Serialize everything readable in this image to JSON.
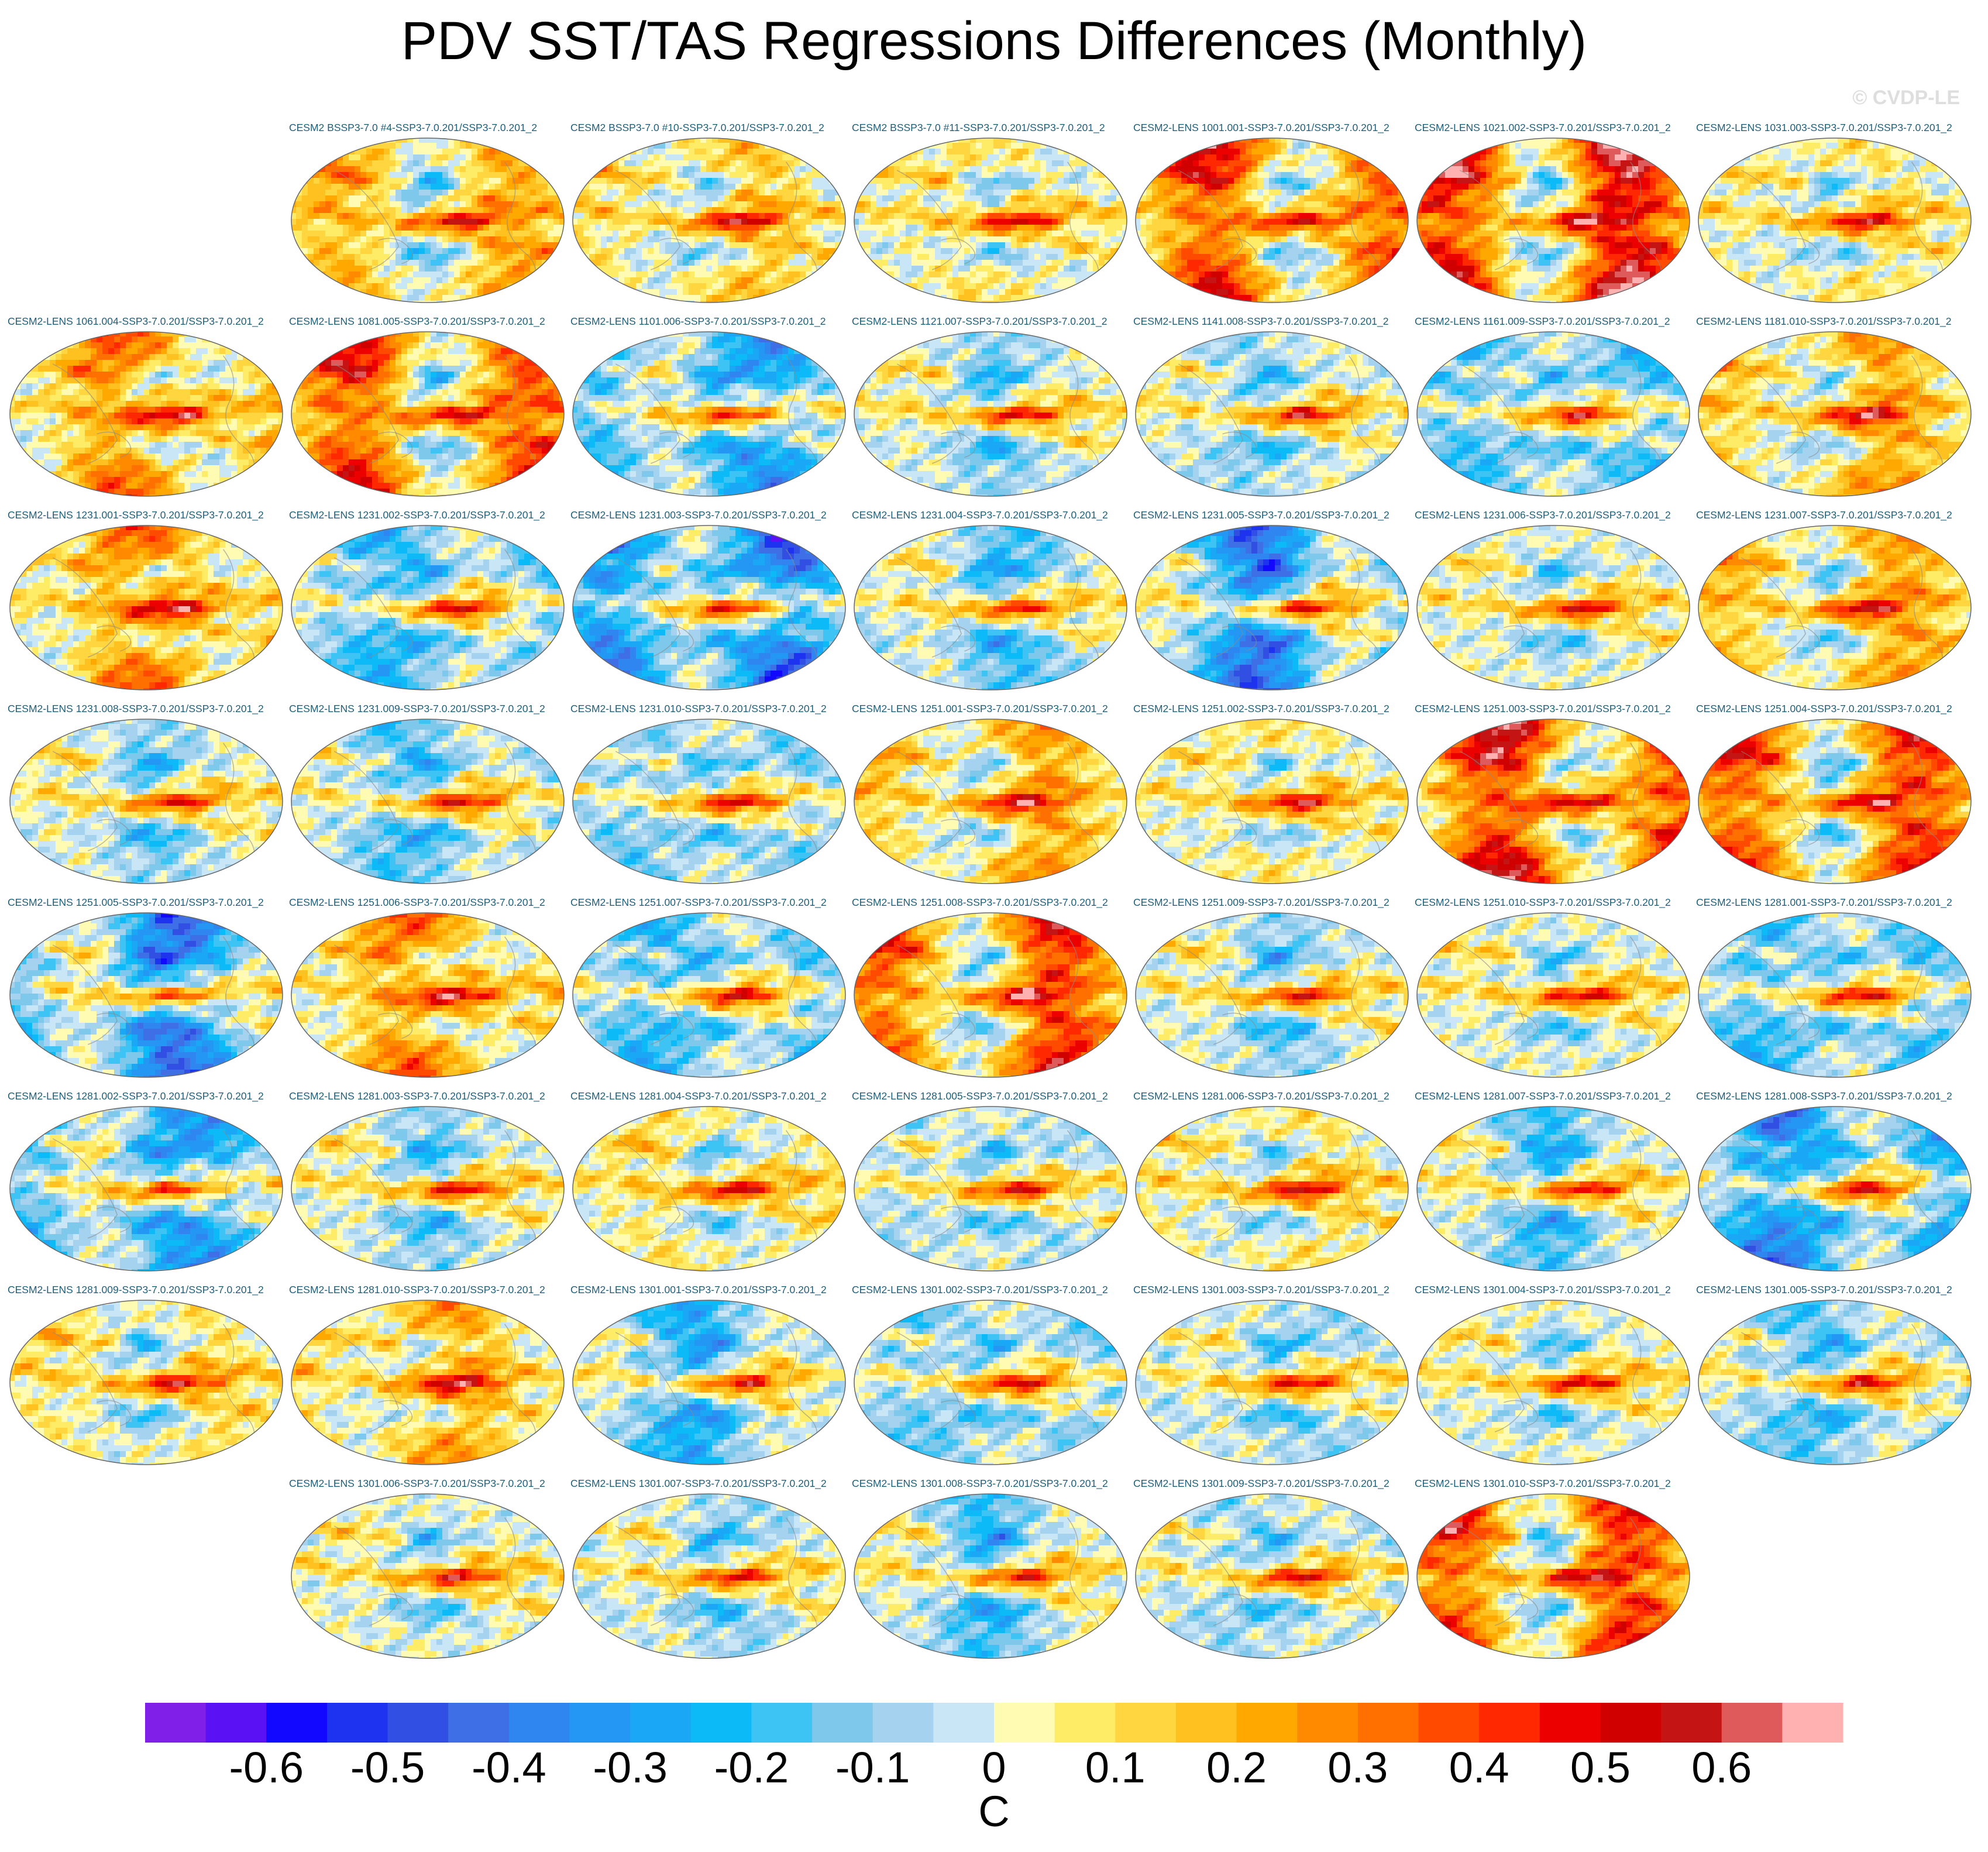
{
  "title": "PDV SST/TAS Regressions Differences (Monthly)",
  "watermark": "© CVDP-LE",
  "chart_data": {
    "type": "heatmap",
    "title": "PDV SST/TAS Regressions Differences (Monthly)",
    "projection": "robinson-like global maps",
    "units": "C",
    "colorbar": {
      "label": "C",
      "tick_labels": [
        "-0.6",
        "-0.5",
        "-0.4",
        "-0.3",
        "-0.2",
        "-0.1",
        "0",
        "0.1",
        "0.2",
        "0.3",
        "0.4",
        "0.5",
        "0.6"
      ],
      "tick_values": [
        -0.6,
        -0.5,
        -0.4,
        -0.3,
        -0.2,
        -0.1,
        0,
        0.1,
        0.2,
        0.3,
        0.4,
        0.5,
        0.6
      ],
      "range": [
        -0.7,
        0.7
      ],
      "step": 0.05,
      "colors": [
        "#7f1fe8",
        "#5a12f5",
        "#1207ff",
        "#1d33f0",
        "#3150e3",
        "#3f6fe6",
        "#2f86f0",
        "#2496f3",
        "#1aa7f6",
        "#0cbaf8",
        "#3ec3f5",
        "#7ec8ec",
        "#a5d3ef",
        "#c8e6f6",
        "#fffbb3",
        "#ffec66",
        "#ffd540",
        "#ffc11f",
        "#ffa800",
        "#ff8a00",
        "#ff7000",
        "#ff4a00",
        "#ff2800",
        "#ec0000",
        "#d00000",
        "#c41414",
        "#df5a5a",
        "#ffb0b0"
      ]
    },
    "panels": [
      {
        "label": "CESM2 BSSP3-7.0 #4-SSP3-7.0.201/SSP3-7.0.201_2",
        "bias": 0.15
      },
      {
        "label": "CESM2 BSSP3-7.0 #10-SSP3-7.0.201/SSP3-7.0.201_2",
        "bias": 0.1
      },
      {
        "label": "CESM2 BSSP3-7.0 #11-SSP3-7.0.201/SSP3-7.0.201_2",
        "bias": 0.05
      },
      {
        "label": "CESM2-LENS 1001.001-SSP3-7.0.201/SSP3-7.0.201_2",
        "bias": 0.3
      },
      {
        "label": "CESM2-LENS 1021.002-SSP3-7.0.201/SSP3-7.0.201_2",
        "bias": 0.4
      },
      {
        "label": "CESM2-LENS 1031.003-SSP3-7.0.201/SSP3-7.0.201_2",
        "bias": 0.05
      },
      {
        "label": "CESM2-LENS 1061.004-SSP3-7.0.201/SSP3-7.0.201_2",
        "bias": 0.2
      },
      {
        "label": "CESM2-LENS 1081.005-SSP3-7.0.201/SSP3-7.0.201_2",
        "bias": 0.3
      },
      {
        "label": "CESM2-LENS 1101.006-SSP3-7.0.201/SSP3-7.0.201_2",
        "bias": -0.2
      },
      {
        "label": "CESM2-LENS 1121.007-SSP3-7.0.201/SSP3-7.0.201_2",
        "bias": -0.05
      },
      {
        "label": "CESM2-LENS 1141.008-SSP3-7.0.201/SSP3-7.0.201_2",
        "bias": -0.05
      },
      {
        "label": "CESM2-LENS 1161.009-SSP3-7.0.201/SSP3-7.0.201_2",
        "bias": -0.15
      },
      {
        "label": "CESM2-LENS 1181.010-SSP3-7.0.201/SSP3-7.0.201_2",
        "bias": 0.15
      },
      {
        "label": "CESM2-LENS 1231.001-SSP3-7.0.201/SSP3-7.0.201_2",
        "bias": 0.2
      },
      {
        "label": "CESM2-LENS 1231.002-SSP3-7.0.201/SSP3-7.0.201_2",
        "bias": -0.15
      },
      {
        "label": "CESM2-LENS 1231.003-SSP3-7.0.201/SSP3-7.0.201_2",
        "bias": -0.3
      },
      {
        "label": "CESM2-LENS 1231.004-SSP3-7.0.201/SSP3-7.0.201_2",
        "bias": -0.1
      },
      {
        "label": "CESM2-LENS 1231.005-SSP3-7.0.201/SSP3-7.0.201_2",
        "bias": -0.25
      },
      {
        "label": "CESM2-LENS 1231.006-SSP3-7.0.201/SSP3-7.0.201_2",
        "bias": 0.0
      },
      {
        "label": "CESM2-LENS 1231.007-SSP3-7.0.201/SSP3-7.0.201_2",
        "bias": 0.15
      },
      {
        "label": "CESM2-LENS 1231.008-SSP3-7.0.201/SSP3-7.0.201_2",
        "bias": -0.05
      },
      {
        "label": "CESM2-LENS 1231.009-SSP3-7.0.201/SSP3-7.0.201_2",
        "bias": -0.1
      },
      {
        "label": "CESM2-LENS 1231.010-SSP3-7.0.201/SSP3-7.0.201_2",
        "bias": -0.1
      },
      {
        "label": "CESM2-LENS 1251.001-SSP3-7.0.201/SSP3-7.0.201_2",
        "bias": 0.15
      },
      {
        "label": "CESM2-LENS 1251.002-SSP3-7.0.201/SSP3-7.0.201_2",
        "bias": 0.05
      },
      {
        "label": "CESM2-LENS 1251.003-SSP3-7.0.201/SSP3-7.0.201_2",
        "bias": 0.35
      },
      {
        "label": "CESM2-LENS 1251.004-SSP3-7.0.201/SSP3-7.0.201_2",
        "bias": 0.3
      },
      {
        "label": "CESM2-LENS 1251.005-SSP3-7.0.201/SSP3-7.0.201_2",
        "bias": -0.25
      },
      {
        "label": "CESM2-LENS 1251.006-SSP3-7.0.201/SSP3-7.0.201_2",
        "bias": 0.2
      },
      {
        "label": "CESM2-LENS 1251.007-SSP3-7.0.201/SSP3-7.0.201_2",
        "bias": -0.15
      },
      {
        "label": "CESM2-LENS 1251.008-SSP3-7.0.201/SSP3-7.0.201_2",
        "bias": 0.3
      },
      {
        "label": "CESM2-LENS 1251.009-SSP3-7.0.201/SSP3-7.0.201_2",
        "bias": -0.05
      },
      {
        "label": "CESM2-LENS 1251.010-SSP3-7.0.201/SSP3-7.0.201_2",
        "bias": 0.0
      },
      {
        "label": "CESM2-LENS 1281.001-SSP3-7.0.201/SSP3-7.0.201_2",
        "bias": -0.15
      },
      {
        "label": "CESM2-LENS 1281.002-SSP3-7.0.201/SSP3-7.0.201_2",
        "bias": -0.2
      },
      {
        "label": "CESM2-LENS 1281.003-SSP3-7.0.201/SSP3-7.0.201_2",
        "bias": -0.05
      },
      {
        "label": "CESM2-LENS 1281.004-SSP3-7.0.201/SSP3-7.0.201_2",
        "bias": 0.05
      },
      {
        "label": "CESM2-LENS 1281.005-SSP3-7.0.201/SSP3-7.0.201_2",
        "bias": -0.05
      },
      {
        "label": "CESM2-LENS 1281.006-SSP3-7.0.201/SSP3-7.0.201_2",
        "bias": 0.05
      },
      {
        "label": "CESM2-LENS 1281.007-SSP3-7.0.201/SSP3-7.0.201_2",
        "bias": -0.1
      },
      {
        "label": "CESM2-LENS 1281.008-SSP3-7.0.201/SSP3-7.0.201_2",
        "bias": -0.25
      },
      {
        "label": "CESM2-LENS 1281.009-SSP3-7.0.201/SSP3-7.0.201_2",
        "bias": 0.05
      },
      {
        "label": "CESM2-LENS 1281.010-SSP3-7.0.201/SSP3-7.0.201_2",
        "bias": 0.15
      },
      {
        "label": "CESM2-LENS 1301.001-SSP3-7.0.201/SSP3-7.0.201_2",
        "bias": -0.15
      },
      {
        "label": "CESM2-LENS 1301.002-SSP3-7.0.201/SSP3-7.0.201_2",
        "bias": -0.1
      },
      {
        "label": "CESM2-LENS 1301.003-SSP3-7.0.201/SSP3-7.0.201_2",
        "bias": -0.05
      },
      {
        "label": "CESM2-LENS 1301.004-SSP3-7.0.201/SSP3-7.0.201_2",
        "bias": 0.0
      },
      {
        "label": "CESM2-LENS 1301.005-SSP3-7.0.201/SSP3-7.0.201_2",
        "bias": -0.1
      },
      {
        "label": "CESM2-LENS 1301.006-SSP3-7.0.201/SSP3-7.0.201_2",
        "bias": 0.0
      },
      {
        "label": "CESM2-LENS 1301.007-SSP3-7.0.201/SSP3-7.0.201_2",
        "bias": -0.05
      },
      {
        "label": "CESM2-LENS 1301.008-SSP3-7.0.201/SSP3-7.0.201_2",
        "bias": -0.1
      },
      {
        "label": "CESM2-LENS 1301.009-SSP3-7.0.201/SSP3-7.0.201_2",
        "bias": -0.05
      },
      {
        "label": "CESM2-LENS 1301.010-SSP3-7.0.201/SSP3-7.0.201_2",
        "bias": 0.3
      }
    ]
  }
}
